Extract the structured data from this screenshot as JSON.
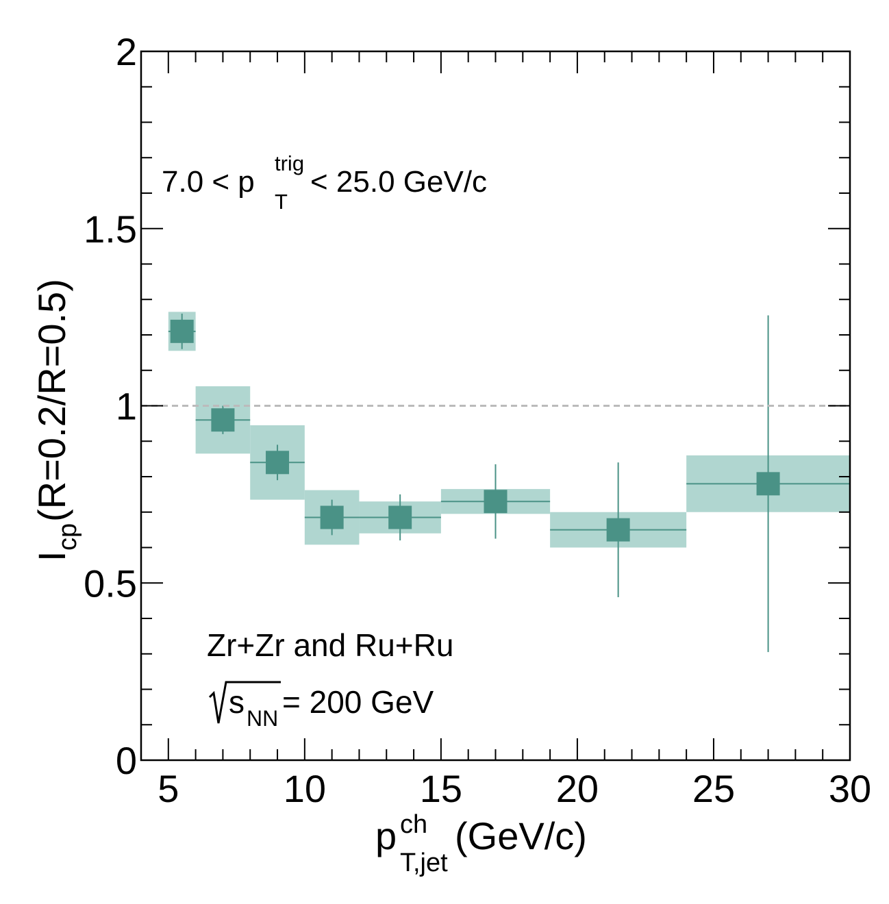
{
  "chart_data": {
    "type": "scatter",
    "title": "",
    "xlabel": {
      "main": "p",
      "sup": "ch",
      "sub": "T,jet",
      "unit": " (GeV/c)"
    },
    "ylabel": {
      "main": "I",
      "sub": "cp",
      "rest": "(R=0.2/R=0.5)"
    },
    "xlim": [
      4,
      30
    ],
    "ylim": [
      0,
      2
    ],
    "x_ticks": [
      5,
      10,
      15,
      20,
      25,
      30
    ],
    "x_tick_labels": [
      "5",
      "10",
      "15",
      "20",
      "25",
      "30"
    ],
    "y_ticks": [
      0,
      0.5,
      1,
      1.5,
      2
    ],
    "y_tick_labels": [
      "0",
      "0.5",
      "1",
      "1.5",
      "2"
    ],
    "reference_line": 1.0,
    "grid": false,
    "legend": "none",
    "series": [
      {
        "marker_color": "#4a9286",
        "syst_color": "#b0d6d0",
        "points": [
          {
            "x": 5.5,
            "xlo": 5,
            "xhi": 6,
            "y": 1.21,
            "stat_lo": 0.05,
            "stat_hi": 0.05,
            "syst": 0.055
          },
          {
            "x": 7,
            "xlo": 6,
            "xhi": 8,
            "y": 0.96,
            "stat_lo": 0.04,
            "stat_hi": 0.04,
            "syst": 0.095
          },
          {
            "x": 9,
            "xlo": 8,
            "xhi": 10,
            "y": 0.84,
            "stat_lo": 0.05,
            "stat_hi": 0.05,
            "syst": 0.105
          },
          {
            "x": 11,
            "xlo": 10,
            "xhi": 12,
            "y": 0.685,
            "stat_lo": 0.05,
            "stat_hi": 0.05,
            "syst": 0.077
          },
          {
            "x": 13.5,
            "xlo": 12,
            "xhi": 15,
            "y": 0.685,
            "stat_lo": 0.065,
            "stat_hi": 0.065,
            "syst": 0.045
          },
          {
            "x": 17,
            "xlo": 15,
            "xhi": 19,
            "y": 0.73,
            "stat_lo": 0.105,
            "stat_hi": 0.105,
            "syst": 0.035
          },
          {
            "x": 21.5,
            "xlo": 19,
            "xhi": 24,
            "y": 0.65,
            "stat_lo": 0.19,
            "stat_hi": 0.19,
            "syst": 0.05
          },
          {
            "x": 27,
            "xlo": 24,
            "xhi": 30,
            "y": 0.78,
            "stat_lo": 0.475,
            "stat_hi": 0.475,
            "syst": 0.08
          }
        ]
      }
    ],
    "annotations": {
      "trig_pre": "7.0 < p",
      "trig_sup": "trig",
      "trig_sub": "T",
      "trig_post": " < 25.0 GeV/c",
      "system": "Zr+Zr and Ru+Ru",
      "energy_pre": "s",
      "energy_sub": "NN",
      "energy_post": " = 200 GeV"
    }
  }
}
